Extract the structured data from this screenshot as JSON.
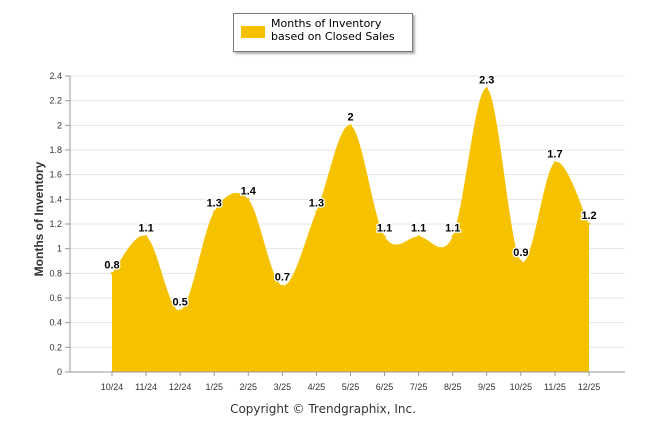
{
  "chart_data": {
    "type": "area",
    "categories": [
      "10/24",
      "11/24",
      "12/24",
      "1/25",
      "2/25",
      "3/25",
      "4/25",
      "5/25",
      "6/25",
      "7/25",
      "8/25",
      "9/25",
      "10/25",
      "11/25",
      "12/25"
    ],
    "series": [
      {
        "name": "Months of Inventory based on Closed Sales",
        "values": [
          0.8,
          1.1,
          0.5,
          1.3,
          1.4,
          0.7,
          1.3,
          2,
          1.1,
          1.1,
          1.1,
          2.3,
          0.9,
          1.7,
          1.2
        ],
        "labels": [
          "0.8",
          "1.1",
          "0.5",
          "1.3",
          "1.4",
          "0.7",
          "1.3",
          "2",
          "1.1",
          "1.1",
          "1.1",
          "2.3",
          "0.9",
          "1.7",
          "1.2"
        ]
      }
    ],
    "ylabel": "Months of Inventory",
    "xlabel": "",
    "ylim": [
      0,
      2.4
    ],
    "yticks": [
      "0",
      "0.2",
      "0.4",
      "0.6",
      "0.8",
      "1",
      "1.2",
      "1.4",
      "1.6",
      "1.8",
      "2",
      "2.2",
      "2.4"
    ],
    "grid": true,
    "legend_position": "top-center"
  },
  "legend": {
    "label": "Months of Inventory based on Closed Sales"
  },
  "footer": {
    "copyright": "Copyright © Trendgraphix, Inc."
  },
  "colors": {
    "fill": "#F6C200",
    "grid": "#e6e6e6",
    "axis": "#999999"
  }
}
